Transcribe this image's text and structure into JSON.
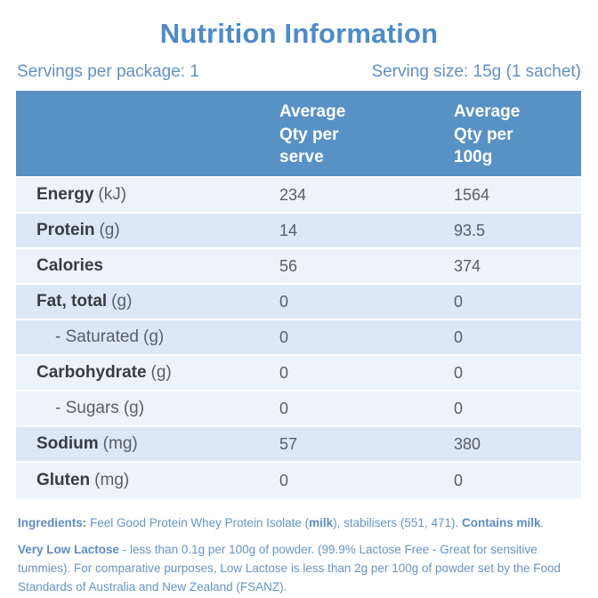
{
  "title": "Nutrition Information",
  "serving": {
    "per_package": "Servings per package: 1",
    "size": "Serving size: 15g (1 sachet)"
  },
  "table": {
    "header": {
      "col_serve": "Average Qty per serve",
      "col_100g": "Average Qty per 100g"
    },
    "rows": [
      {
        "label": "Energy",
        "unit": "(kJ)",
        "serve": "234",
        "per100": "1564"
      },
      {
        "label": "Protein",
        "unit": "(g)",
        "serve": "14",
        "per100": "93.5"
      },
      {
        "label": "Calories",
        "unit": "",
        "serve": "56",
        "per100": "374"
      },
      {
        "label": "Fat, total",
        "unit": "(g)",
        "serve": "0",
        "per100": "0"
      },
      {
        "label": "- Saturated",
        "unit": "(g)",
        "serve": "0",
        "per100": "0"
      },
      {
        "label": "Carbohydrate",
        "unit": "(g)",
        "serve": "0",
        "per100": "0"
      },
      {
        "label": "- Sugars",
        "unit": "(g)",
        "serve": "0",
        "per100": "0"
      },
      {
        "label": "Sodium",
        "unit": "(mg)",
        "serve": "57",
        "per100": "380"
      },
      {
        "label": "Gluten",
        "unit": "(mg)",
        "serve": "0",
        "per100": "0"
      }
    ]
  },
  "footer": {
    "ingredients": [
      {
        "text": "Ingredients:",
        "bold": true
      },
      {
        "text": " Feel Good Protein Whey Protein Isolate (",
        "bold": false
      },
      {
        "text": "milk",
        "bold": true
      },
      {
        "text": "), stabilisers (551, 471). ",
        "bold": false
      },
      {
        "text": "Contains milk",
        "bold": true
      },
      {
        "text": ".",
        "bold": false
      }
    ],
    "lactose": [
      {
        "text": "Very Low Lactose",
        "bold": true
      },
      {
        "text": " - less than 0.1g per 100g of powder. (99.9% Lactose Free - Great for sensitive tummies). For comparative purposes, Low Lactose is less than 2g per 100g of powder set by the Food Standards of Australia and New Zealand (FSANZ).",
        "bold": false
      }
    ]
  },
  "colors": {
    "accent_blue": "#5891c4",
    "title_blue": "#4e8bc8",
    "text_blue": "#6794c3",
    "row_light": "#edf3fb",
    "row_dark": "#dce8f5",
    "label_dark": "#373d44",
    "value_gray": "#575e67"
  }
}
